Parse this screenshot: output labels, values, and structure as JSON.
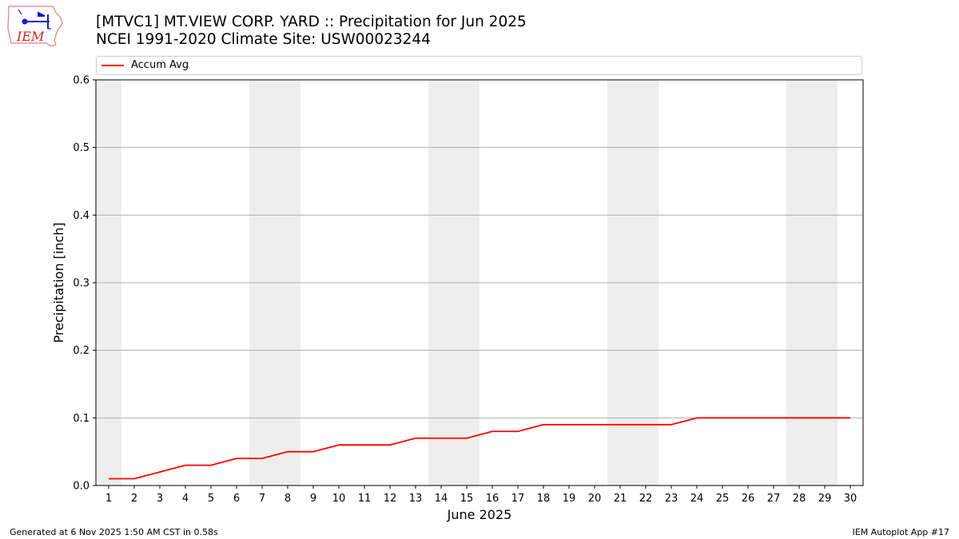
{
  "header": {
    "title_line1": "[MTVC1] MT.VIEW CORP. YARD :: Precipitation for Jun 2025",
    "title_line2": "NCEI 1991-2020 Climate Site: USW00023244"
  },
  "logo": {
    "text": "IEM",
    "icon": "iem-iowa-logo-icon",
    "color": "#cc2222"
  },
  "legend": {
    "entries": [
      {
        "label": "Accum Avg",
        "color": "#ff0000"
      }
    ],
    "placement": "top"
  },
  "footer": {
    "left": "Generated at 6 Nov 2025 1:50 AM CST in 0.58s",
    "right": "IEM Autoplot App #17"
  },
  "chart_data": {
    "type": "line",
    "xlabel": "June 2025",
    "ylabel": "Precipitation [inch]",
    "x": [
      1,
      2,
      3,
      4,
      5,
      6,
      7,
      8,
      9,
      10,
      11,
      12,
      13,
      14,
      15,
      16,
      17,
      18,
      19,
      20,
      21,
      22,
      23,
      24,
      25,
      26,
      27,
      28,
      29,
      30
    ],
    "xlim": [
      0.5,
      30.5
    ],
    "ylim": [
      0,
      0.6
    ],
    "yticks": [
      "0.0",
      "0.1",
      "0.2",
      "0.3",
      "0.4",
      "0.5",
      "0.6"
    ],
    "xticks": [
      "1",
      "2",
      "3",
      "4",
      "5",
      "6",
      "7",
      "8",
      "9",
      "10",
      "11",
      "12",
      "13",
      "14",
      "15",
      "16",
      "17",
      "18",
      "19",
      "20",
      "21",
      "22",
      "23",
      "24",
      "25",
      "26",
      "27",
      "28",
      "29",
      "30"
    ],
    "grid": "horizontal",
    "weekend_shading": {
      "color": "#eeeeee",
      "days": [
        1,
        7,
        8,
        14,
        15,
        21,
        22,
        28,
        29
      ]
    },
    "series": [
      {
        "name": "Accum Avg",
        "color": "#ff0000",
        "values": [
          0.01,
          0.01,
          0.02,
          0.03,
          0.03,
          0.04,
          0.04,
          0.05,
          0.05,
          0.06,
          0.06,
          0.06,
          0.07,
          0.07,
          0.07,
          0.08,
          0.08,
          0.09,
          0.09,
          0.09,
          0.09,
          0.09,
          0.09,
          0.1,
          0.1,
          0.1,
          0.1,
          0.1,
          0.1,
          0.1
        ]
      }
    ]
  }
}
